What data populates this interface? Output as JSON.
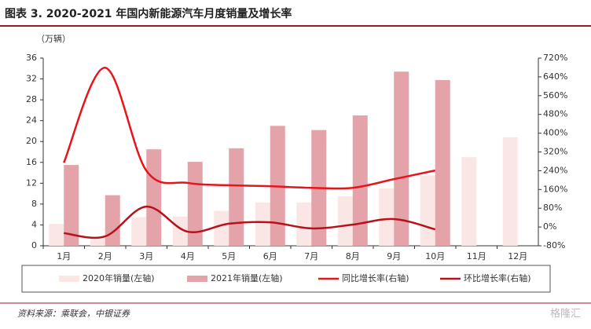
{
  "chart_data": {
    "type": "bar_line",
    "title": "图表 3. 2020-2021 年国内新能源汽车月度销量及增长率",
    "y_label": "（万辆）",
    "source": "资料来源：乘联会，中银证券",
    "watermark": "格隆汇",
    "categories": [
      "1月",
      "2月",
      "3月",
      "4月",
      "5月",
      "6月",
      "7月",
      "8月",
      "9月",
      "10月",
      "11月",
      "12月"
    ],
    "series": [
      {
        "name": "2020年销量(左轴)",
        "kind": "bar",
        "color": "#fbe6e6",
        "values": [
          4.2,
          1.4,
          5.5,
          5.6,
          6.7,
          8.3,
          8.3,
          9.5,
          11,
          13.5,
          17,
          20.8
        ]
      },
      {
        "name": "2021年销量(左轴)",
        "kind": "bar",
        "color": "#e4a3a8",
        "values": [
          15.5,
          9.7,
          18.5,
          16.1,
          18.7,
          23,
          22.2,
          25,
          33.4,
          31.8,
          null,
          null
        ]
      },
      {
        "name": "同比增长率(右轴)",
        "kind": "line",
        "axis": "y2",
        "color": "#e8141c",
        "values": [
          274,
          679,
          240,
          188,
          178,
          174,
          167,
          167,
          204,
          241,
          null,
          null
        ]
      },
      {
        "name": "环比增长率(右轴)",
        "kind": "line",
        "axis": "y2",
        "color": "#b5121b",
        "values": [
          -26,
          -40,
          87,
          -20,
          14,
          20,
          -6,
          10,
          34,
          -10,
          null,
          null
        ]
      }
    ],
    "ylim": [
      0,
      36
    ],
    "yticks": [
      0,
      4,
      8,
      12,
      16,
      20,
      24,
      28,
      32,
      36
    ],
    "y2lim": [
      -80,
      720
    ],
    "y2ticks": [
      {
        "value": -80,
        "label": "-80%"
      },
      {
        "value": 0,
        "label": "0%"
      },
      {
        "value": 80,
        "label": "80%"
      },
      {
        "value": 160,
        "label": "160%"
      },
      {
        "value": 240,
        "label": "240%"
      },
      {
        "value": 320,
        "label": "320%"
      },
      {
        "value": 400,
        "label": "400%"
      },
      {
        "value": 480,
        "label": "480%"
      },
      {
        "value": 560,
        "label": "560%"
      },
      {
        "value": 640,
        "label": "640%"
      },
      {
        "value": 720,
        "label": "720%"
      }
    ]
  }
}
